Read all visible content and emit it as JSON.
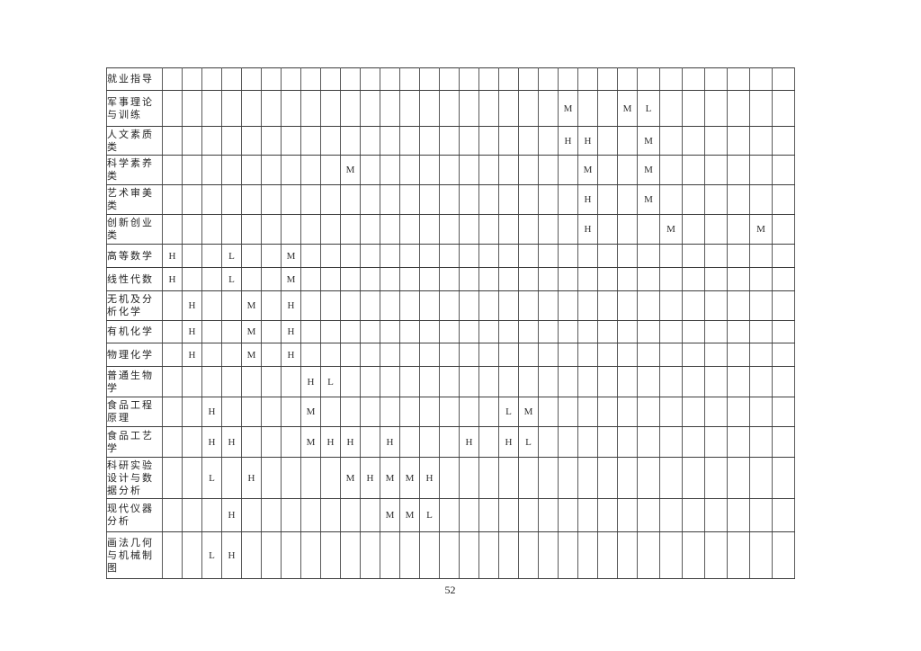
{
  "page": {
    "number": "52"
  },
  "matrix_table": {
    "data_column_count": 31,
    "mark_values": [
      "H",
      "M",
      "L"
    ],
    "rows": [
      {
        "label": "就业指导",
        "marks": {}
      },
      {
        "label": "军事理论与训练",
        "marks": {
          "21": "M",
          "24": "M",
          "25": "L"
        }
      },
      {
        "label": "人文素质类",
        "marks": {
          "21": "H",
          "22": "H",
          "25": "M"
        }
      },
      {
        "label": "科学素养类",
        "marks": {
          "10": "M",
          "22": "M",
          "25": "M"
        }
      },
      {
        "label": "艺术审美类",
        "marks": {
          "22": "H",
          "25": "M"
        }
      },
      {
        "label": "创新创业类",
        "marks": {
          "22": "H",
          "26": "M",
          "30": "M"
        }
      },
      {
        "label": "高等数学",
        "marks": {
          "1": "H",
          "4": "L",
          "7": "M"
        }
      },
      {
        "label": "线性代数",
        "marks": {
          "1": "H",
          "4": "L",
          "7": "M"
        }
      },
      {
        "label": "无机及分析化学",
        "marks": {
          "2": "H",
          "5": "M",
          "7": "H"
        }
      },
      {
        "label": "有机化学",
        "marks": {
          "2": "H",
          "5": "M",
          "7": "H"
        }
      },
      {
        "label": "物理化学",
        "marks": {
          "2": "H",
          "5": "M",
          "7": "H"
        }
      },
      {
        "label": "普通生物学",
        "marks": {
          "8": "H",
          "9": "L"
        }
      },
      {
        "label": "食品工程原理",
        "marks": {
          "3": "H",
          "8": "M",
          "18": "L",
          "19": "M"
        }
      },
      {
        "label": "食品工艺学",
        "marks": {
          "3": "H",
          "4": "H",
          "8": "M",
          "9": "H",
          "10": "H",
          "12": "H",
          "16": "H",
          "18": "H",
          "19": "L"
        }
      },
      {
        "label": "科研实验设计与数据分析",
        "marks": {
          "3": "L",
          "5": "H",
          "10": "M",
          "11": "H",
          "12": "M",
          "13": "M",
          "14": "H"
        }
      },
      {
        "label": "现代仪器分析",
        "marks": {
          "4": "H",
          "12": "M",
          "13": "M",
          "14": "L"
        }
      },
      {
        "label": "画法几何与机械制图",
        "marks": {
          "3": "L",
          "4": "H"
        }
      }
    ]
  }
}
